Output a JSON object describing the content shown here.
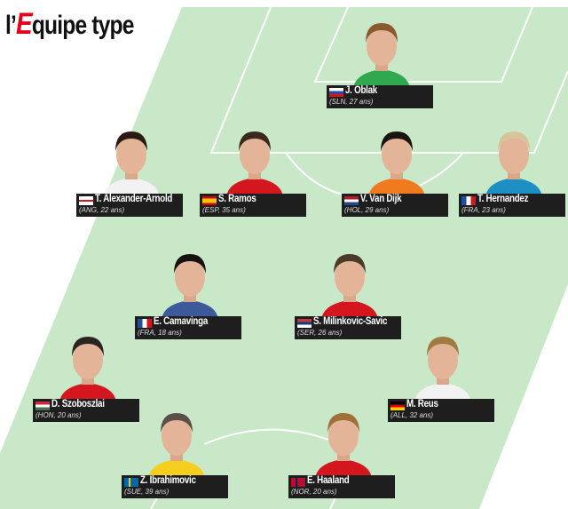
{
  "title": {
    "prefix": "l’",
    "accent": "E",
    "rest": "quipe type"
  },
  "colors": {
    "pitch": "#c9e8c8",
    "line": "#ffffff",
    "label_bg": "#1e1e1e",
    "brand_red": "#e2001a"
  },
  "players": [
    {
      "name": "J. Oblak",
      "info": "(SLN, 27 ans)",
      "flag": "slovenia",
      "shirt": "#2fa84f",
      "hair": "#8a5a2e"
    },
    {
      "name": "T. Alexander-Arnold",
      "info": "(ANG, 22 ans)",
      "flag": "england",
      "shirt": "#f2f2f2",
      "hair": "#2a1c14"
    },
    {
      "name": "S. Ramos",
      "info": "(ESP, 35 ans)",
      "flag": "spain",
      "shirt": "#d4171e",
      "hair": "#3a2a1e"
    },
    {
      "name": "V. Van Dijk",
      "info": "(HOL, 29 ans)",
      "flag": "netherlands",
      "shirt": "#f07a1e",
      "hair": "#1a1410"
    },
    {
      "name": "T. Hernandez",
      "info": "(FRA, 23 ans)",
      "flag": "france",
      "shirt": "#1d8fc2",
      "hair": "#d8c49a"
    },
    {
      "name": "E. Camavinga",
      "info": "(FRA, 18 ans)",
      "flag": "france",
      "shirt": "#3c5a9a",
      "hair": "#161210"
    },
    {
      "name": "S. Milinkovic-Savic",
      "info": "(SER, 26 ans)",
      "flag": "serbia",
      "shirt": "#d4171e",
      "hair": "#4a3a2a"
    },
    {
      "name": "D. Szoboszlai",
      "info": "(HON, 20 ans)",
      "flag": "hungary",
      "shirt": "#d4171e",
      "hair": "#2a2420"
    },
    {
      "name": "M. Reus",
      "info": "(ALL, 32 ans)",
      "flag": "germany",
      "shirt": "#f2f2f2",
      "hair": "#a07a40"
    },
    {
      "name": "Z. Ibrahimovic",
      "info": "(SUE, 39 ans)",
      "flag": "sweden",
      "shirt": "#f5cf1e",
      "hair": "#5a5048"
    },
    {
      "name": "E. Haaland",
      "info": "(NOR, 20 ans)",
      "flag": "norway",
      "shirt": "#d4171e",
      "hair": "#a0703a"
    }
  ]
}
